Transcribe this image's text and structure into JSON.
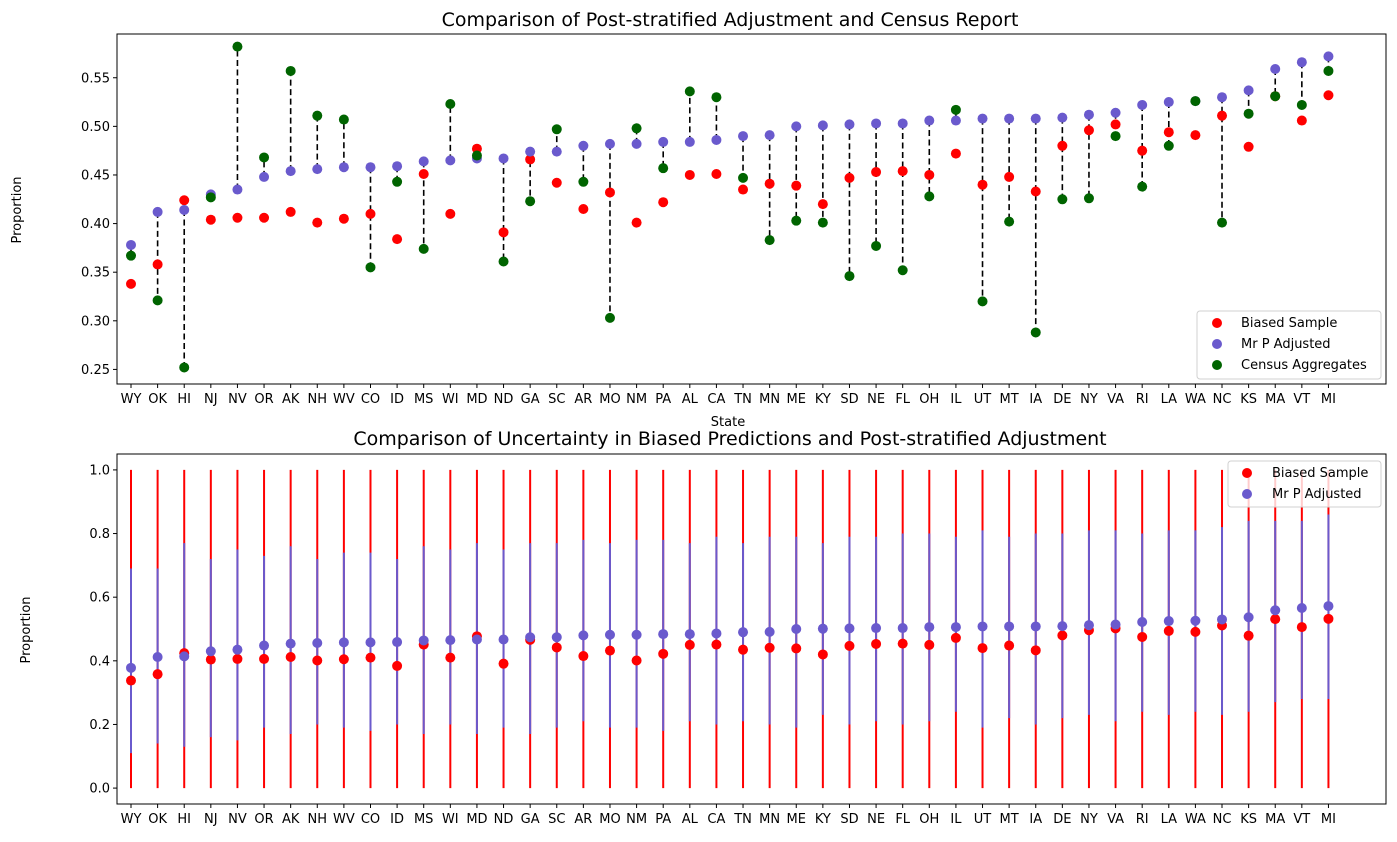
{
  "chart_data": [
    {
      "type": "scatter",
      "title": "Comparison of Post-stratified Adjustment and Census Report",
      "xlabel": "State",
      "ylabel": "Proportion",
      "ylim": [
        0.235,
        0.595
      ],
      "yticks": [
        0.25,
        0.3,
        0.35,
        0.4,
        0.45,
        0.5,
        0.55
      ],
      "ytick_labels": [
        "0.25",
        "0.30",
        "0.35",
        "0.40",
        "0.45",
        "0.50",
        "0.55"
      ],
      "legend_position": "lower-right",
      "categories": [
        "WY",
        "OK",
        "HI",
        "NJ",
        "NV",
        "OR",
        "AK",
        "NH",
        "WV",
        "CO",
        "ID",
        "MS",
        "WI",
        "MD",
        "ND",
        "GA",
        "SC",
        "AR",
        "MO",
        "NM",
        "PA",
        "AL",
        "CA",
        "TN",
        "MN",
        "ME",
        "KY",
        "SD",
        "NE",
        "FL",
        "OH",
        "IL",
        "UT",
        "MT",
        "IA",
        "DE",
        "NY",
        "VA",
        "RI",
        "LA",
        "WA",
        "NC",
        "KS",
        "MA",
        "VT",
        "MI"
      ],
      "series": [
        {
          "name": "Biased Sample",
          "color": "#ff0000",
          "values": [
            0.338,
            0.358,
            0.424,
            0.404,
            0.406,
            0.406,
            0.412,
            0.401,
            0.405,
            0.41,
            0.384,
            0.451,
            0.41,
            0.477,
            0.391,
            0.466,
            0.442,
            0.415,
            0.432,
            0.401,
            0.422,
            0.45,
            0.451,
            0.435,
            0.441,
            0.439,
            0.42,
            0.447,
            0.453,
            0.454,
            0.45,
            0.472,
            0.44,
            0.448,
            0.433,
            0.48,
            0.496,
            0.502,
            0.475,
            0.494,
            0.491,
            0.511,
            0.479,
            0.531,
            0.506,
            0.532
          ]
        },
        {
          "name": "Mr P Adjusted",
          "color": "#6a5acd",
          "values": [
            0.378,
            0.412,
            0.414,
            0.43,
            0.435,
            0.448,
            0.454,
            0.456,
            0.458,
            0.458,
            0.459,
            0.464,
            0.465,
            0.467,
            0.467,
            0.474,
            0.474,
            0.48,
            0.482,
            0.482,
            0.484,
            0.484,
            0.486,
            0.49,
            0.491,
            0.5,
            0.501,
            0.502,
            0.503,
            0.503,
            0.506,
            0.506,
            0.508,
            0.508,
            0.508,
            0.509,
            0.512,
            0.514,
            0.522,
            0.525,
            0.526,
            0.53,
            0.537,
            0.559,
            0.566,
            0.572
          ]
        },
        {
          "name": "Census Aggregates",
          "color": "#006400",
          "values": [
            0.367,
            0.321,
            0.252,
            0.427,
            0.582,
            0.468,
            0.557,
            0.511,
            0.507,
            0.355,
            0.443,
            0.374,
            0.523,
            0.47,
            0.361,
            0.423,
            0.497,
            0.443,
            0.303,
            0.498,
            0.457,
            0.536,
            0.53,
            0.447,
            0.383,
            0.403,
            0.401,
            0.346,
            0.377,
            0.352,
            0.428,
            0.517,
            0.32,
            0.402,
            0.288,
            0.425,
            0.426,
            0.49,
            0.438,
            0.48,
            0.526,
            0.401,
            0.513,
            0.531,
            0.522,
            0.557
          ]
        }
      ]
    },
    {
      "type": "scatter",
      "title": "Comparison of Uncertainty in Biased Predictions and Post-stratified Adjustment",
      "xlabel": "",
      "ylabel": "Proportion",
      "ylim": [
        -0.05,
        1.05
      ],
      "yticks": [
        0.0,
        0.2,
        0.4,
        0.6,
        0.8,
        1.0
      ],
      "ytick_labels": [
        "0.0",
        "0.2",
        "0.4",
        "0.6",
        "0.8",
        "1.0"
      ],
      "legend_position": "top-right",
      "categories": [
        "WY",
        "OK",
        "HI",
        "NJ",
        "NV",
        "OR",
        "AK",
        "NH",
        "WV",
        "CO",
        "ID",
        "MS",
        "WI",
        "MD",
        "ND",
        "GA",
        "SC",
        "AR",
        "MO",
        "NM",
        "PA",
        "AL",
        "CA",
        "TN",
        "MN",
        "ME",
        "KY",
        "SD",
        "NE",
        "FL",
        "OH",
        "IL",
        "UT",
        "MT",
        "IA",
        "DE",
        "NY",
        "VA",
        "RI",
        "LA",
        "WA",
        "NC",
        "KS",
        "MA",
        "VT",
        "MI"
      ],
      "series": [
        {
          "name": "Biased Sample",
          "color": "#ff0000",
          "values": [
            0.338,
            0.358,
            0.424,
            0.404,
            0.406,
            0.406,
            0.412,
            0.401,
            0.405,
            0.41,
            0.384,
            0.451,
            0.41,
            0.477,
            0.391,
            0.466,
            0.442,
            0.415,
            0.432,
            0.401,
            0.422,
            0.45,
            0.451,
            0.435,
            0.441,
            0.439,
            0.42,
            0.447,
            0.453,
            0.454,
            0.45,
            0.472,
            0.44,
            0.448,
            0.433,
            0.48,
            0.496,
            0.502,
            0.475,
            0.494,
            0.491,
            0.511,
            0.479,
            0.531,
            0.506,
            0.532
          ],
          "interval_low": [
            0,
            0,
            0,
            0,
            0,
            0,
            0,
            0,
            0,
            0,
            0,
            0,
            0,
            0,
            0,
            0,
            0,
            0,
            0,
            0,
            0,
            0,
            0,
            0,
            0,
            0,
            0,
            0,
            0,
            0,
            0,
            0,
            0,
            0,
            0,
            0,
            0,
            0,
            0,
            0,
            0,
            0,
            0,
            0,
            0,
            0
          ],
          "interval_high": [
            1,
            1,
            1,
            1,
            1,
            1,
            1,
            1,
            1,
            1,
            1,
            1,
            1,
            1,
            1,
            1,
            1,
            1,
            1,
            1,
            1,
            1,
            1,
            1,
            1,
            1,
            1,
            1,
            1,
            1,
            1,
            1,
            1,
            1,
            1,
            1,
            1,
            1,
            1,
            1,
            1,
            1,
            1,
            1,
            1,
            1
          ]
        },
        {
          "name": "Mr P Adjusted",
          "color": "#6a5acd",
          "values": [
            0.378,
            0.412,
            0.414,
            0.43,
            0.435,
            0.448,
            0.454,
            0.456,
            0.458,
            0.458,
            0.459,
            0.464,
            0.465,
            0.467,
            0.467,
            0.474,
            0.474,
            0.48,
            0.482,
            0.482,
            0.484,
            0.484,
            0.486,
            0.49,
            0.491,
            0.5,
            0.501,
            0.502,
            0.503,
            0.503,
            0.506,
            0.506,
            0.508,
            0.508,
            0.508,
            0.509,
            0.512,
            0.514,
            0.522,
            0.525,
            0.526,
            0.53,
            0.537,
            0.559,
            0.566,
            0.572
          ],
          "interval_low": [
            0.11,
            0.14,
            0.13,
            0.16,
            0.15,
            0.19,
            0.17,
            0.2,
            0.19,
            0.18,
            0.2,
            0.17,
            0.2,
            0.17,
            0.19,
            0.17,
            0.19,
            0.21,
            0.19,
            0.19,
            0.18,
            0.21,
            0.2,
            0.21,
            0.2,
            0.19,
            0.23,
            0.2,
            0.21,
            0.2,
            0.21,
            0.24,
            0.19,
            0.22,
            0.2,
            0.22,
            0.23,
            0.21,
            0.24,
            0.23,
            0.24,
            0.23,
            0.24,
            0.27,
            0.28,
            0.28
          ],
          "interval_high": [
            0.69,
            0.69,
            0.77,
            0.72,
            0.75,
            0.73,
            0.76,
            0.72,
            0.74,
            0.74,
            0.72,
            0.76,
            0.75,
            0.77,
            0.75,
            0.77,
            0.77,
            0.78,
            0.77,
            0.78,
            0.78,
            0.77,
            0.79,
            0.77,
            0.79,
            0.79,
            0.77,
            0.79,
            0.79,
            0.8,
            0.8,
            0.79,
            0.81,
            0.79,
            0.8,
            0.8,
            0.81,
            0.81,
            0.8,
            0.81,
            0.81,
            0.82,
            0.84,
            0.84,
            0.84,
            0.86
          ]
        }
      ]
    }
  ]
}
